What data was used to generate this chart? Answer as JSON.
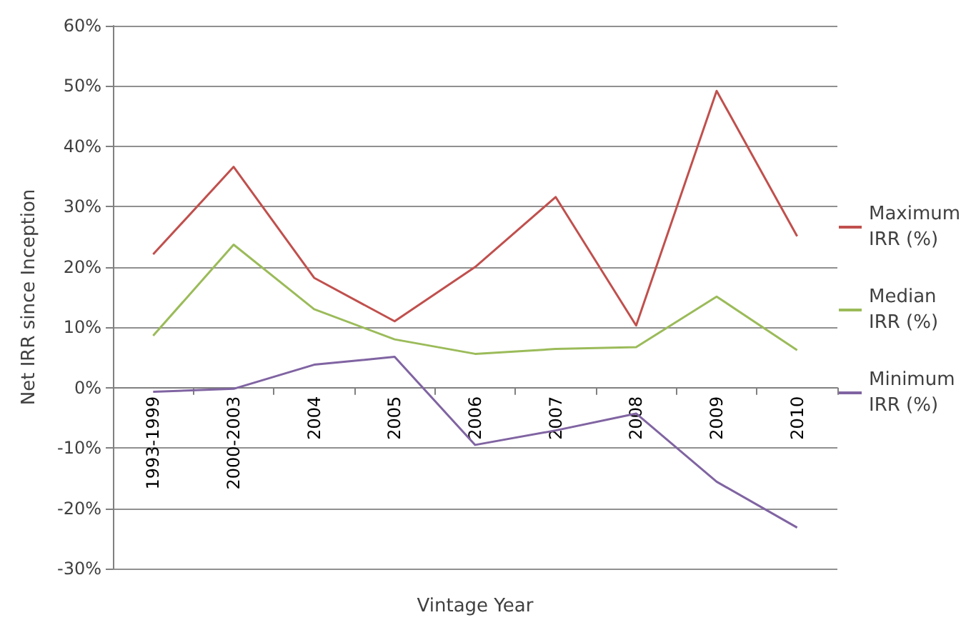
{
  "chart_data": {
    "type": "line",
    "xlabel": "Vintage Year",
    "ylabel": "Net IRR since Inception",
    "categories": [
      "1993-1999",
      "2000-2003",
      "2004",
      "2005",
      "2006",
      "2007",
      "2008",
      "2009",
      "2010"
    ],
    "series": [
      {
        "name": "Maximum IRR (%)",
        "color": "#c0504d",
        "values": [
          22.1,
          36.6,
          18.2,
          11.0,
          20.0,
          31.6,
          10.3,
          49.2,
          25.1
        ]
      },
      {
        "name": "Median IRR (%)",
        "color": "#9bbb59",
        "values": [
          8.6,
          23.7,
          13.0,
          8.0,
          5.6,
          6.4,
          6.7,
          15.1,
          6.2
        ]
      },
      {
        "name": "Minimum IRR (%)",
        "color": "#8064a2",
        "values": [
          -0.7,
          -0.2,
          3.8,
          5.1,
          -9.5,
          -7.1,
          -4.3,
          -15.6,
          -23.2
        ]
      }
    ],
    "ylim": [
      -30,
      60
    ],
    "yticks": [
      {
        "value": -30,
        "label": "-30%"
      },
      {
        "value": -20,
        "label": "-20%"
      },
      {
        "value": -10,
        "label": "-10%"
      },
      {
        "value": 0,
        "label": "0%"
      },
      {
        "value": 10,
        "label": "10%"
      },
      {
        "value": 20,
        "label": "20%"
      },
      {
        "value": 30,
        "label": "30%"
      },
      {
        "value": 40,
        "label": "40%"
      },
      {
        "value": 50,
        "label": "50%"
      },
      {
        "value": 60,
        "label": "60%"
      }
    ],
    "grid": "y",
    "legend": "right",
    "marker": "none",
    "line_style": "solid"
  }
}
